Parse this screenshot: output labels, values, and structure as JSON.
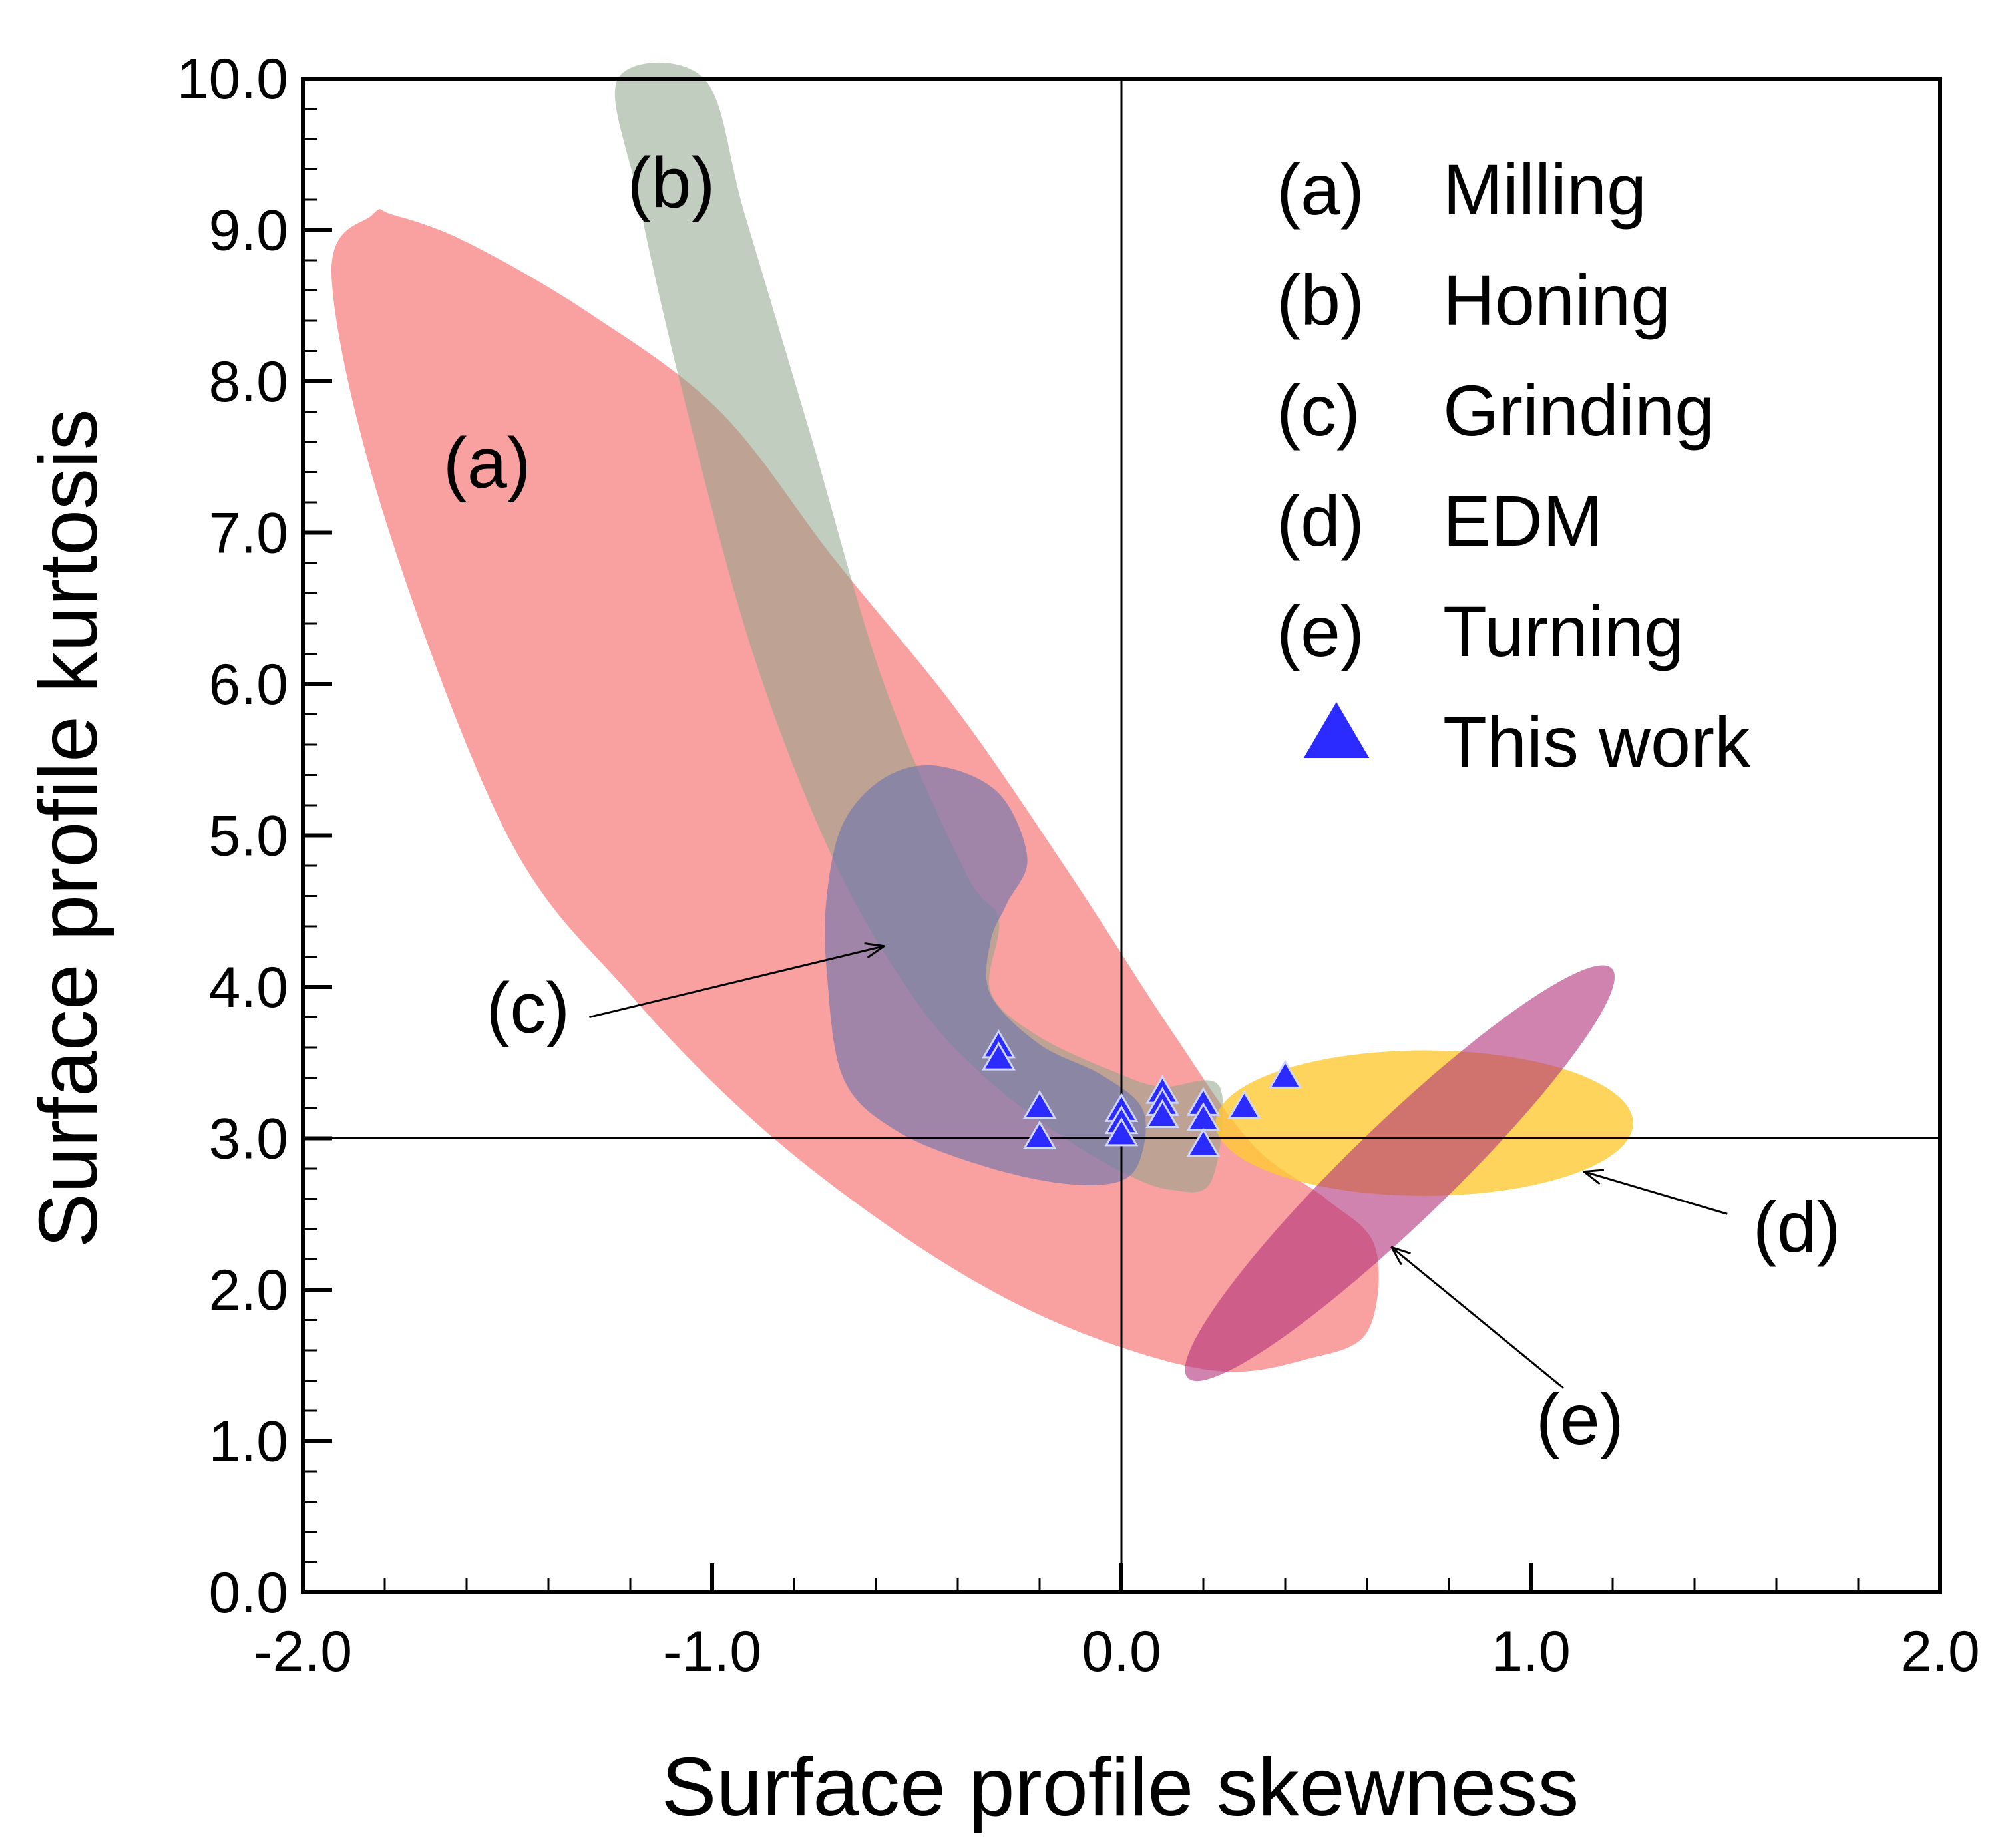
{
  "chart_data": {
    "type": "scatter",
    "xlabel": "Surface profile skewness",
    "ylabel": "Surface profile kurtosis",
    "xlim": [
      -2.0,
      2.0
    ],
    "ylim": [
      0.0,
      10.0
    ],
    "xticks": [
      "-2.0",
      "-1.0",
      "0.0",
      "1.0",
      "2.0"
    ],
    "yticks": [
      "0.0",
      "1.0",
      "2.0",
      "3.0",
      "4.0",
      "5.0",
      "6.0",
      "7.0",
      "8.0",
      "9.0",
      "10.0"
    ],
    "reference_lines": {
      "x": 0.0,
      "y": 3.0
    },
    "legend": [
      {
        "tag": "(a)",
        "label": "Milling"
      },
      {
        "tag": "(b)",
        "label": "Honing"
      },
      {
        "tag": "(c)",
        "label": "Grinding"
      },
      {
        "tag": "(d)",
        "label": "EDM"
      },
      {
        "tag": "(e)",
        "label": "Turning"
      },
      {
        "tag": "",
        "label": "This work",
        "marker": "triangle"
      }
    ],
    "regions": [
      {
        "id": "a",
        "label": "(a)",
        "process": "Milling",
        "color": "#f78a8a",
        "opacity": 0.8,
        "outline": [
          [
            -1.83,
            9.1
          ],
          [
            -1.78,
            9.1
          ],
          [
            -1.6,
            8.92
          ],
          [
            -1.3,
            8.45
          ],
          [
            -0.98,
            7.8
          ],
          [
            -0.7,
            6.82
          ],
          [
            -0.4,
            5.82
          ],
          [
            -0.12,
            4.72
          ],
          [
            0.12,
            3.72
          ],
          [
            0.32,
            2.96
          ],
          [
            0.5,
            2.6
          ],
          [
            0.62,
            2.28
          ],
          [
            0.6,
            1.72
          ],
          [
            0.45,
            1.54
          ],
          [
            0.25,
            1.46
          ],
          [
            0.0,
            1.62
          ],
          [
            -0.28,
            1.94
          ],
          [
            -0.58,
            2.44
          ],
          [
            -0.9,
            3.12
          ],
          [
            -1.2,
            3.95
          ],
          [
            -1.5,
            5.0
          ],
          [
            -1.8,
            7.1
          ],
          [
            -1.93,
            8.7
          ]
        ],
        "label_at": [
          -1.55,
          7.3
        ]
      },
      {
        "id": "b",
        "label": "(b)",
        "process": "Honing",
        "color": "#8ea68a",
        "opacity": 0.55,
        "outline": [
          [
            -1.23,
            10.0
          ],
          [
            -1.02,
            10.0
          ],
          [
            -0.92,
            9.1
          ],
          [
            -0.76,
            7.65
          ],
          [
            -0.58,
            6.0
          ],
          [
            -0.38,
            4.75
          ],
          [
            -0.3,
            4.45
          ],
          [
            -0.32,
            3.97
          ],
          [
            -0.2,
            3.67
          ],
          [
            0.0,
            3.42
          ],
          [
            0.1,
            3.34
          ],
          [
            0.24,
            3.34
          ],
          [
            0.22,
            2.72
          ],
          [
            0.12,
            2.66
          ],
          [
            0.0,
            2.78
          ],
          [
            -0.16,
            3.04
          ],
          [
            -0.34,
            3.42
          ],
          [
            -0.5,
            3.9
          ],
          [
            -0.7,
            4.82
          ],
          [
            -0.9,
            6.2
          ],
          [
            -1.07,
            7.9
          ],
          [
            -1.18,
            9.2
          ]
        ],
        "label_at": [
          -1.1,
          9.15
        ]
      },
      {
        "id": "c",
        "label": "(c)",
        "process": "Grinding",
        "color": "#6b74ad",
        "opacity": 0.62,
        "outline": [
          [
            -0.68,
            5.08
          ],
          [
            -0.58,
            5.38
          ],
          [
            -0.45,
            5.46
          ],
          [
            -0.3,
            5.28
          ],
          [
            -0.23,
            4.85
          ],
          [
            -0.28,
            4.55
          ],
          [
            -0.32,
            4.3
          ],
          [
            -0.32,
            3.95
          ],
          [
            -0.2,
            3.62
          ],
          [
            -0.05,
            3.42
          ],
          [
            0.05,
            3.2
          ],
          [
            0.05,
            2.9
          ],
          [
            0.0,
            2.72
          ],
          [
            -0.14,
            2.7
          ],
          [
            -0.34,
            2.82
          ],
          [
            -0.55,
            3.05
          ],
          [
            -0.68,
            3.4
          ],
          [
            -0.72,
            4.1
          ],
          [
            -0.72,
            4.6
          ]
        ],
        "label_at": [
          -1.45,
          3.7
        ],
        "arrow": {
          "from": [
            -1.3,
            3.8
          ],
          "to": [
            -0.58,
            4.27
          ]
        }
      },
      {
        "id": "d",
        "label": "(d)",
        "process": "EDM",
        "color": "#ffc933",
        "opacity": 0.8,
        "ellipse": {
          "cx": 0.74,
          "cy": 3.1,
          "rx": 0.51,
          "ry": 0.48,
          "angle": 0
        },
        "label_at": [
          1.65,
          2.25
        ],
        "arrow": {
          "from": [
            1.48,
            2.5
          ],
          "to": [
            1.13,
            2.78
          ]
        }
      },
      {
        "id": "e",
        "label": "(e)",
        "process": "Turning",
        "color": "#b0307a",
        "opacity": 0.6,
        "ellipse": {
          "cx": 0.68,
          "cy": 2.77,
          "rx": 0.72,
          "ry": 0.33,
          "angle": -44
        },
        "label_at": [
          1.12,
          0.98
        ],
        "arrow": {
          "from": [
            1.08,
            1.35
          ],
          "to": [
            0.66,
            2.28
          ]
        }
      }
    ],
    "series": [
      {
        "name": "This work",
        "marker": "triangle",
        "color": "#2b2bff",
        "points": [
          [
            -0.3,
            3.6
          ],
          [
            -0.3,
            3.52
          ],
          [
            -0.2,
            3.2
          ],
          [
            -0.2,
            3.0
          ],
          [
            0.0,
            3.18
          ],
          [
            0.0,
            3.1
          ],
          [
            0.0,
            3.02
          ],
          [
            0.1,
            3.3
          ],
          [
            0.1,
            3.22
          ],
          [
            0.1,
            3.14
          ],
          [
            0.2,
            3.22
          ],
          [
            0.2,
            3.12
          ],
          [
            0.2,
            2.95
          ],
          [
            0.3,
            3.2
          ],
          [
            0.4,
            3.4
          ]
        ]
      }
    ]
  }
}
